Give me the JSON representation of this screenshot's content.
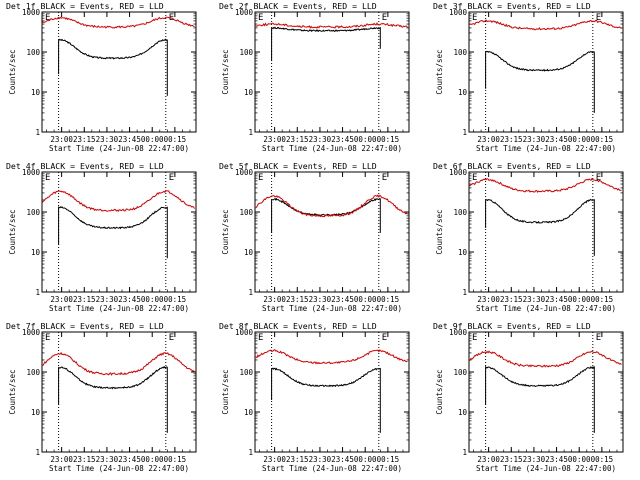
{
  "page": {
    "background": "#ffffff"
  },
  "chart_data": [
    {
      "type": "line",
      "title": "Det 1f BLACK = Events, RED = LLD",
      "ylabel": "Counts/sec",
      "xlabel": "Start Time (24-Jun-08 22:47:00)",
      "marker": "E",
      "yscale": "log",
      "ylim": [
        1,
        1000
      ],
      "yticks": [
        "1",
        "10",
        "100",
        "1000"
      ],
      "xticks": [
        "23:00",
        "23:15",
        "23:30",
        "23:45",
        "00:00",
        "00:15"
      ],
      "vlines": [
        "22:58",
        "00:09"
      ],
      "series": [
        {
          "name": "BLACK = Events",
          "color": "#000000",
          "start": "22:58",
          "end": "00:10",
          "peak": 200,
          "trough": 70,
          "first_min": 28,
          "last_min": 8
        },
        {
          "name": "RED = LLD",
          "color": "#d40000",
          "start": "22:47",
          "end": "00:28",
          "peak": 720,
          "trough": 420
        }
      ]
    },
    {
      "type": "line",
      "title": "Det 2f BLACK = Events, RED = LLD",
      "ylabel": "Counts/sec",
      "xlabel": "Start Time (24-Jun-08 22:47:00)",
      "marker": "E",
      "yscale": "log",
      "ylim": [
        1,
        1000
      ],
      "yticks": [
        "1",
        "10",
        "100",
        "1000"
      ],
      "xticks": [
        "23:00",
        "23:15",
        "23:30",
        "23:45",
        "00:00",
        "00:15"
      ],
      "vlines": [
        "22:58",
        "00:09"
      ],
      "series": [
        {
          "name": "BLACK = Events",
          "color": "#000000",
          "start": "22:58",
          "end": "00:10",
          "peak": 400,
          "trough": 340,
          "first_min": 60,
          "last_min": 120
        },
        {
          "name": "RED = LLD",
          "color": "#d40000",
          "start": "22:47",
          "end": "00:28",
          "peak": 500,
          "trough": 420
        }
      ]
    },
    {
      "type": "line",
      "title": "Det 3f BLACK = Events, RED = LLD",
      "ylabel": "Counts/sec",
      "xlabel": "Start Time (24-Jun-08 22:47:00)",
      "marker": "E",
      "yscale": "log",
      "ylim": [
        1,
        1000
      ],
      "yticks": [
        "1",
        "10",
        "100",
        "1000"
      ],
      "xticks": [
        "23:00",
        "23:15",
        "23:30",
        "23:45",
        "00:00",
        "00:15"
      ],
      "vlines": [
        "22:58",
        "00:09"
      ],
      "series": [
        {
          "name": "BLACK = Events",
          "color": "#000000",
          "start": "22:58",
          "end": "00:10",
          "peak": 100,
          "trough": 35,
          "first_min": 12,
          "last_min": 3
        },
        {
          "name": "RED = LLD",
          "color": "#d40000",
          "start": "22:47",
          "end": "00:28",
          "peak": 600,
          "trough": 380
        }
      ]
    },
    {
      "type": "line",
      "title": "Det 4f BLACK = Events, RED = LLD",
      "ylabel": "Counts/sec",
      "xlabel": "Start Time (24-Jun-08 22:47:00)",
      "marker": "E",
      "yscale": "log",
      "ylim": [
        1,
        1000
      ],
      "yticks": [
        "1",
        "10",
        "100",
        "1000"
      ],
      "xticks": [
        "23:00",
        "23:15",
        "23:30",
        "23:45",
        "00:00",
        "00:15"
      ],
      "vlines": [
        "22:58",
        "00:09"
      ],
      "series": [
        {
          "name": "BLACK = Events",
          "color": "#000000",
          "start": "22:58",
          "end": "00:10",
          "peak": 130,
          "trough": 40,
          "first_min": 15,
          "last_min": 7
        },
        {
          "name": "RED = LLD",
          "color": "#d40000",
          "start": "22:47",
          "end": "00:28",
          "peak": 330,
          "trough": 110
        }
      ]
    },
    {
      "type": "line",
      "title": "Det 5f BLACK = Events, RED = LLD",
      "ylabel": "Counts/sec",
      "xlabel": "Start Time (24-Jun-08 22:47:00)",
      "marker": "E",
      "yscale": "log",
      "ylim": [
        1,
        1000
      ],
      "yticks": [
        "1",
        "10",
        "100",
        "1000"
      ],
      "xticks": [
        "23:00",
        "23:15",
        "23:30",
        "23:45",
        "00:00",
        "00:15"
      ],
      "vlines": [
        "22:58",
        "00:09"
      ],
      "series": [
        {
          "name": "BLACK = Events",
          "color": "#000000",
          "start": "22:58",
          "end": "00:10",
          "peak": 210,
          "trough": 85,
          "first_min": 30,
          "last_min": 30
        },
        {
          "name": "RED = LLD",
          "color": "#d40000",
          "start": "22:47",
          "end": "00:28",
          "peak": 250,
          "trough": 80
        }
      ]
    },
    {
      "type": "line",
      "title": "Det 6f BLACK = Events, RED = LLD",
      "ylabel": "Counts/sec",
      "xlabel": "Start Time (24-Jun-08 22:47:00)",
      "marker": "E",
      "yscale": "log",
      "ylim": [
        1,
        1000
      ],
      "yticks": [
        "1",
        "10",
        "100",
        "1000"
      ],
      "xticks": [
        "23:00",
        "23:15",
        "23:30",
        "23:45",
        "00:00",
        "00:15"
      ],
      "vlines": [
        "22:58",
        "00:09"
      ],
      "series": [
        {
          "name": "BLACK = Events",
          "color": "#000000",
          "start": "22:58",
          "end": "00:10",
          "peak": 200,
          "trough": 55,
          "first_min": 40,
          "last_min": 8
        },
        {
          "name": "RED = LLD",
          "color": "#d40000",
          "start": "22:47",
          "end": "00:28",
          "peak": 650,
          "trough": 330
        }
      ]
    },
    {
      "type": "line",
      "title": "Det 7f BLACK = Events, RED = LLD",
      "ylabel": "Counts/sec",
      "xlabel": "Start Time (24-Jun-08 22:47:00)",
      "marker": "E",
      "yscale": "log",
      "ylim": [
        1,
        1000
      ],
      "yticks": [
        "1",
        "10",
        "100",
        "1000"
      ],
      "xticks": [
        "23:00",
        "23:15",
        "23:30",
        "23:45",
        "00:00",
        "00:15"
      ],
      "vlines": [
        "22:58",
        "00:09"
      ],
      "series": [
        {
          "name": "BLACK = Events",
          "color": "#000000",
          "start": "22:58",
          "end": "00:10",
          "peak": 130,
          "trough": 40,
          "first_min": 15,
          "last_min": 3
        },
        {
          "name": "RED = LLD",
          "color": "#d40000",
          "start": "22:47",
          "end": "00:28",
          "peak": 290,
          "trough": 90
        }
      ]
    },
    {
      "type": "line",
      "title": "Det 8f BLACK = Events, RED = LLD",
      "ylabel": "Counts/sec",
      "xlabel": "Start Time (24-Jun-08 22:47:00)",
      "marker": "E",
      "yscale": "log",
      "ylim": [
        1,
        1000
      ],
      "yticks": [
        "1",
        "10",
        "100",
        "1000"
      ],
      "xticks": [
        "23:00",
        "23:15",
        "23:30",
        "23:45",
        "00:00",
        "00:15"
      ],
      "vlines": [
        "22:58",
        "00:09"
      ],
      "series": [
        {
          "name": "BLACK = Events",
          "color": "#000000",
          "start": "22:58",
          "end": "00:10",
          "peak": 120,
          "trough": 45,
          "first_min": 20,
          "last_min": 3
        },
        {
          "name": "RED = LLD",
          "color": "#d40000",
          "start": "22:47",
          "end": "00:28",
          "peak": 340,
          "trough": 170
        }
      ]
    },
    {
      "type": "line",
      "title": "Det 9f BLACK = Events, RED = LLD",
      "ylabel": "Counts/sec",
      "xlabel": "Start Time (24-Jun-08 22:47:00)",
      "marker": "E",
      "yscale": "log",
      "ylim": [
        1,
        1000
      ],
      "yticks": [
        "1",
        "10",
        "100",
        "1000"
      ],
      "xticks": [
        "23:00",
        "23:15",
        "23:30",
        "23:45",
        "00:00",
        "00:15"
      ],
      "vlines": [
        "22:58",
        "00:09"
      ],
      "series": [
        {
          "name": "BLACK = Events",
          "color": "#000000",
          "start": "22:58",
          "end": "00:10",
          "peak": 130,
          "trough": 45,
          "first_min": 15,
          "last_min": 3
        },
        {
          "name": "RED = LLD",
          "color": "#d40000",
          "start": "22:47",
          "end": "00:28",
          "peak": 320,
          "trough": 140
        }
      ]
    }
  ]
}
